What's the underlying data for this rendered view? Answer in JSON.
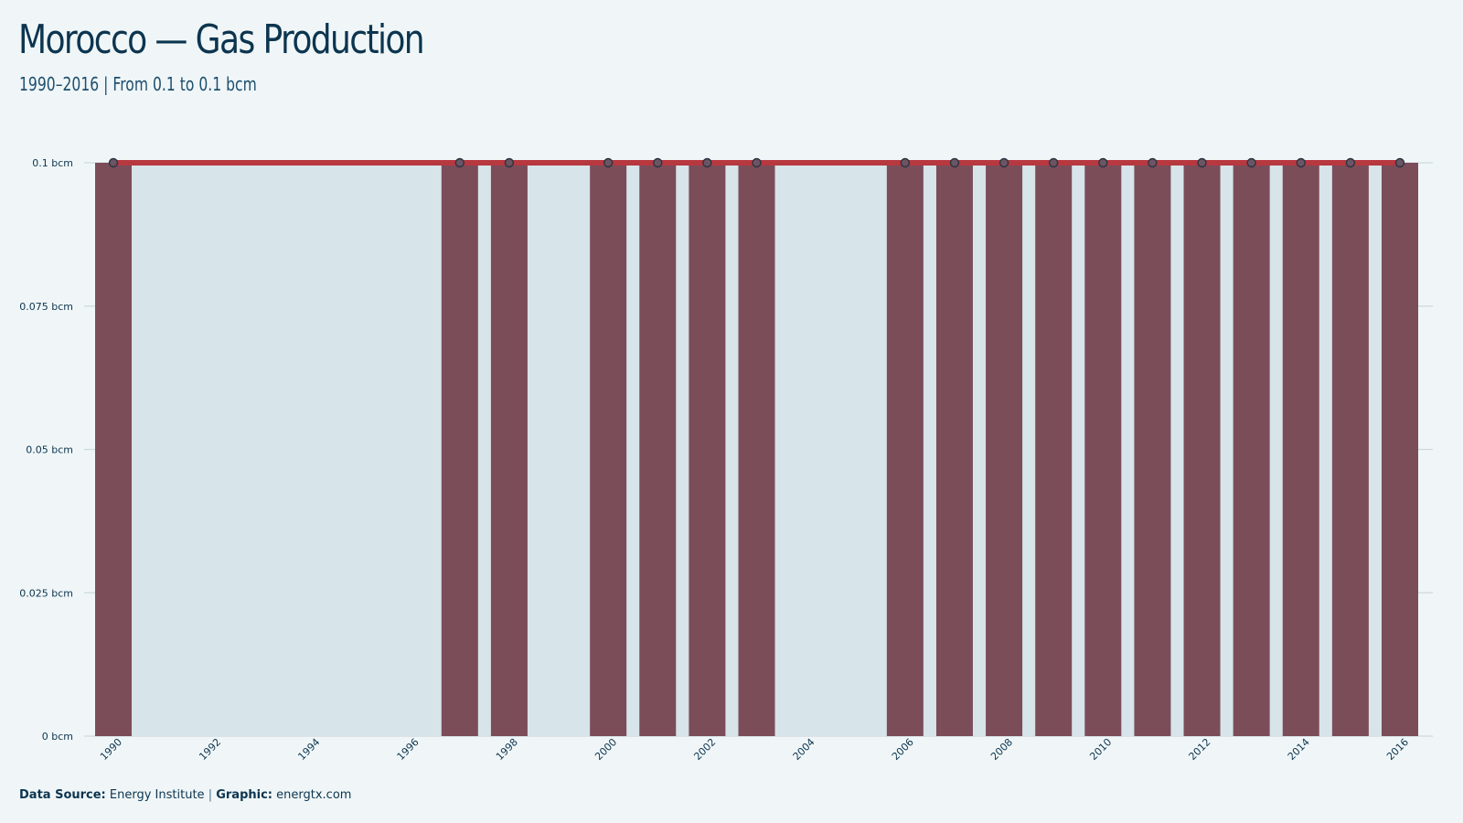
{
  "header": {
    "title": "Morocco — Gas Production",
    "subtitle": "1990–2016 | From 0.1 to 0.1 bcm"
  },
  "footer": {
    "source_label": "Data Source:",
    "source_value": "Energy Institute",
    "separator": "|",
    "graphic_label": "Graphic:",
    "graphic_value": "energtx.com"
  },
  "colors": {
    "bar": "#7b4d59",
    "line": "#b8383f",
    "area": "#d7e4e9",
    "grid": "#cdd9de",
    "marker_fill": "#6b5564",
    "marker_stroke": "#2b3340",
    "text": "#0c3550"
  },
  "chart_data": {
    "type": "bar",
    "unit": "bcm",
    "x": [
      1990,
      1997,
      1998,
      2000,
      2001,
      2002,
      2003,
      2006,
      2007,
      2008,
      2009,
      2010,
      2011,
      2012,
      2013,
      2014,
      2015,
      2016
    ],
    "values": [
      0.1,
      0.1,
      0.1,
      0.1,
      0.1,
      0.1,
      0.1,
      0.1,
      0.1,
      0.1,
      0.1,
      0.1,
      0.1,
      0.1,
      0.1,
      0.1,
      0.1,
      0.1
    ],
    "xlim": [
      1990,
      2016
    ],
    "ylim": [
      0,
      0.1
    ],
    "xticks": [
      "1990",
      "1992",
      "1994",
      "1996",
      "1998",
      "2000",
      "2002",
      "2004",
      "2006",
      "2008",
      "2010",
      "2012",
      "2014",
      "2016"
    ],
    "yticks": [
      "0 bcm",
      "0.025 bcm",
      "0.05 bcm",
      "0.075 bcm",
      "0.1 bcm"
    ],
    "ytick_values": [
      0,
      0.025,
      0.05,
      0.075,
      0.1
    ],
    "grid": true,
    "legend": "none",
    "overlay": "line with markers and shaded area"
  }
}
